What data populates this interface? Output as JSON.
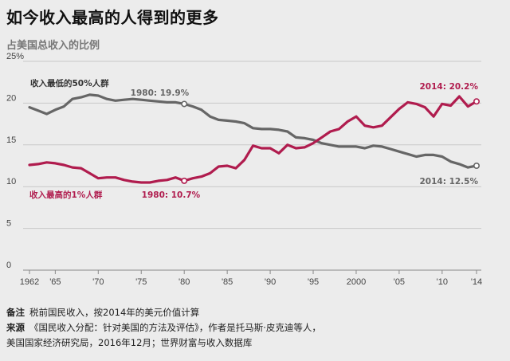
{
  "header": {
    "title": "如今收入最高的人得到的更多",
    "subtitle": "占美国总收入的比例"
  },
  "chart_data": {
    "type": "line",
    "ylim": [
      0,
      25
    ],
    "y_ticks": [
      0,
      5,
      10,
      15,
      20,
      25
    ],
    "y_tick_labels": [
      "0",
      "5",
      "10",
      "15",
      "20",
      "25%"
    ],
    "xlim": [
      1962,
      2014
    ],
    "x_ticks": [
      1962,
      1965,
      1970,
      1975,
      1980,
      1985,
      1990,
      1995,
      2000,
      2005,
      2010,
      2014
    ],
    "x_tick_labels": [
      "1962",
      "'65",
      "'70",
      "'75",
      "'80",
      "'85",
      "'90",
      "'95",
      "2000",
      "'05",
      "'10",
      "'14"
    ],
    "grid": "horizontal",
    "series": [
      {
        "name": "收入最低的50%人群",
        "color": "#666666",
        "x": [
          1962,
          1963,
          1964,
          1965,
          1966,
          1967,
          1968,
          1969,
          1970,
          1971,
          1972,
          1973,
          1974,
          1975,
          1976,
          1977,
          1978,
          1979,
          1980,
          1981,
          1982,
          1983,
          1984,
          1985,
          1986,
          1987,
          1988,
          1989,
          1990,
          1991,
          1992,
          1993,
          1994,
          1995,
          1996,
          1997,
          1998,
          1999,
          2000,
          2001,
          2002,
          2003,
          2004,
          2005,
          2006,
          2007,
          2008,
          2009,
          2010,
          2011,
          2012,
          2013,
          2014
        ],
        "values": [
          19.5,
          19.1,
          18.7,
          19.2,
          19.6,
          20.5,
          20.7,
          21.0,
          20.9,
          20.5,
          20.3,
          20.4,
          20.5,
          20.4,
          20.3,
          20.2,
          20.1,
          20.1,
          19.9,
          19.6,
          19.2,
          18.4,
          18.0,
          17.9,
          17.8,
          17.6,
          17.0,
          16.9,
          16.9,
          16.8,
          16.6,
          15.9,
          15.8,
          15.6,
          15.2,
          15.0,
          14.8,
          14.8,
          14.8,
          14.6,
          14.9,
          14.8,
          14.5,
          14.2,
          13.9,
          13.6,
          13.8,
          13.8,
          13.6,
          13.0,
          12.7,
          12.3,
          12.5
        ]
      },
      {
        "name": "收入最高的1%人群",
        "color": "#b01c4e",
        "x": [
          1962,
          1963,
          1964,
          1965,
          1966,
          1967,
          1968,
          1969,
          1970,
          1971,
          1972,
          1973,
          1974,
          1975,
          1976,
          1977,
          1978,
          1979,
          1980,
          1981,
          1982,
          1983,
          1984,
          1985,
          1986,
          1987,
          1988,
          1989,
          1990,
          1991,
          1992,
          1993,
          1994,
          1995,
          1996,
          1997,
          1998,
          1999,
          2000,
          2001,
          2002,
          2003,
          2004,
          2005,
          2006,
          2007,
          2008,
          2009,
          2010,
          2011,
          2012,
          2013,
          2014
        ],
        "values": [
          12.6,
          12.7,
          12.9,
          12.8,
          12.6,
          12.3,
          12.2,
          11.6,
          11.0,
          11.1,
          11.1,
          10.8,
          10.6,
          10.5,
          10.5,
          10.7,
          10.8,
          11.1,
          10.7,
          11.0,
          11.2,
          11.6,
          12.4,
          12.5,
          12.2,
          13.2,
          14.9,
          14.6,
          14.6,
          14.0,
          15.0,
          14.6,
          14.7,
          15.2,
          15.9,
          16.6,
          16.9,
          17.8,
          18.4,
          17.3,
          17.1,
          17.3,
          18.3,
          19.3,
          20.1,
          19.9,
          19.5,
          18.4,
          19.9,
          19.7,
          20.8,
          19.6,
          20.2
        ]
      }
    ],
    "annotations": [
      {
        "text": "收入最低的50%人群",
        "series": 0,
        "style": "series-label"
      },
      {
        "text": "1980: 19.9%",
        "series": 0,
        "x": 1980,
        "y": 19.9,
        "marker": true
      },
      {
        "text": "2014: 12.5%",
        "series": 0,
        "x": 2014,
        "y": 12.5,
        "marker": true
      },
      {
        "text": "收入最高的1%人群",
        "series": 1,
        "style": "series-label"
      },
      {
        "text": "1980: 10.7%",
        "series": 1,
        "x": 1980,
        "y": 10.7,
        "marker": true
      },
      {
        "text": "2014: 20.2%",
        "series": 1,
        "x": 2014,
        "y": 20.2,
        "marker": true
      }
    ]
  },
  "notes": {
    "note_label": "备注",
    "note_text": "税前国民收入，按2014年的美元价值计算",
    "source_label": "来源",
    "source_text": "《国民收入分配：针对美国的方法及评估》，作者是托马斯·皮克迪等人，",
    "source_text2": "美国国家经济研究局，2016年12月；世界财富与收入数据库"
  }
}
